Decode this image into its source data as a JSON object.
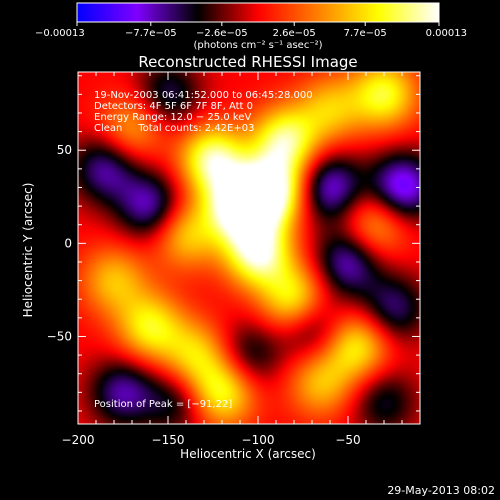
{
  "chart_data": {
    "type": "heatmap",
    "title": "Reconstructed RHESSI Image",
    "xlabel": "Heliocentric X (arcsec)",
    "ylabel": "Heliocentric Y (arcsec)",
    "xlim": [
      -200,
      -10
    ],
    "ylim": [
      -97,
      92
    ],
    "xticks": [
      -200,
      -150,
      -100,
      -50
    ],
    "xtick_labels": [
      "−200",
      "−150",
      "−100",
      "−50"
    ],
    "yticks": [
      50,
      0,
      -50
    ],
    "ytick_labels": [
      "50",
      "0",
      "−50"
    ],
    "grid": false,
    "colorbar": {
      "min": -0.00013,
      "max": 0.00013,
      "ticks": [
        -0.00013,
        -7.7e-05,
        -2.6e-05,
        2.6e-05,
        7.7e-05,
        0.00013
      ],
      "tick_labels": [
        "−0.00013",
        "−7.7e−05",
        "−2.6e−05",
        "2.6e−05",
        "7.7e−05",
        "0.00013"
      ],
      "label": "(photons cm⁻² s⁻¹ asec⁻²)",
      "colors": [
        "#0000ff",
        "#7f00ff",
        "#000000",
        "#ff0000",
        "#ff8000",
        "#ffff00",
        "#ffffff"
      ]
    },
    "annotations": [
      "19-Nov-2003 06:41:52.000 to 06:45:28.000",
      "Detectors: 4F 5F 6F 7F 8F, Att 0",
      "Energy Range: 12.0 − 25.0 keV",
      "Clean     Total counts: 2.42E+03"
    ],
    "peak_label": "Position of Peak = [−91,22]",
    "peak": [
      -91,
      22
    ],
    "sources": [
      {
        "x": -110,
        "y": 20,
        "value": 1.0
      },
      {
        "x": -92,
        "y": 28,
        "value": 0.9
      },
      {
        "x": -125,
        "y": 45,
        "value": 0.8
      },
      {
        "x": -85,
        "y": 55,
        "value": 0.75
      },
      {
        "x": -100,
        "y": -5,
        "value": 0.85
      },
      {
        "x": -80,
        "y": -30,
        "value": 0.65
      },
      {
        "x": -140,
        "y": 5,
        "value": 0.5
      },
      {
        "x": -160,
        "y": -45,
        "value": 0.6
      },
      {
        "x": -135,
        "y": -60,
        "value": 0.5
      },
      {
        "x": -120,
        "y": -80,
        "value": 0.65
      },
      {
        "x": -65,
        "y": -75,
        "value": 0.45
      },
      {
        "x": -45,
        "y": -55,
        "value": 0.6
      },
      {
        "x": -30,
        "y": 80,
        "value": 0.65
      },
      {
        "x": -60,
        "y": 72,
        "value": 0.45
      },
      {
        "x": -170,
        "y": 62,
        "value": 0.4
      },
      {
        "x": -180,
        "y": -20,
        "value": 0.45
      },
      {
        "x": -35,
        "y": 10,
        "value": 0.45
      },
      {
        "x": -185,
        "y": 40,
        "value": -0.5
      },
      {
        "x": -160,
        "y": 20,
        "value": -0.55
      },
      {
        "x": -175,
        "y": -80,
        "value": -0.5
      },
      {
        "x": -145,
        "y": -85,
        "value": -0.35
      },
      {
        "x": -60,
        "y": 30,
        "value": -0.6
      },
      {
        "x": -50,
        "y": -10,
        "value": -0.55
      },
      {
        "x": -20,
        "y": 30,
        "value": -0.7
      },
      {
        "x": -25,
        "y": -35,
        "value": -0.45
      },
      {
        "x": -70,
        "y": -45,
        "value": -0.4
      },
      {
        "x": -150,
        "y": 80,
        "value": -0.4
      },
      {
        "x": -105,
        "y": -60,
        "value": -0.35
      },
      {
        "x": -30,
        "y": -85,
        "value": -0.35
      }
    ]
  },
  "footer": {
    "timestamp": "29-May-2013 08:02"
  }
}
